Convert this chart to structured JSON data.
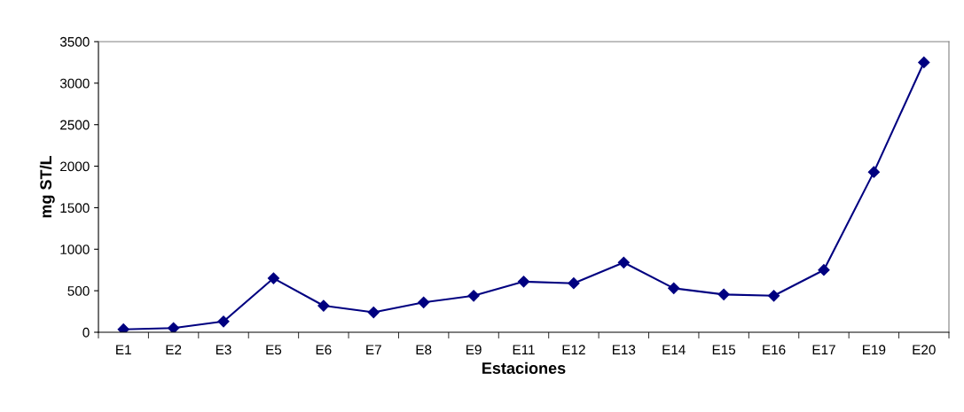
{
  "chart_data": {
    "type": "line",
    "xlabel": "Estaciones",
    "ylabel": "mg ST/L",
    "categories": [
      "E1",
      "E2",
      "E3",
      "E5",
      "E6",
      "E7",
      "E8",
      "E9",
      "E11",
      "E12",
      "E13",
      "E14",
      "E15",
      "E16",
      "E17",
      "E19",
      "E20"
    ],
    "series": [
      {
        "color": "#000080",
        "values": [
          35,
          50,
          130,
          650,
          320,
          240,
          360,
          440,
          610,
          590,
          840,
          530,
          455,
          440,
          750,
          1930,
          3250
        ]
      }
    ],
    "ylim": [
      0,
      3500
    ],
    "yticks": [
      0,
      500,
      1000,
      1500,
      2000,
      2500,
      3000,
      3500
    ],
    "grid": false,
    "legend": false,
    "marker": "diamond",
    "line_style": "solid"
  }
}
